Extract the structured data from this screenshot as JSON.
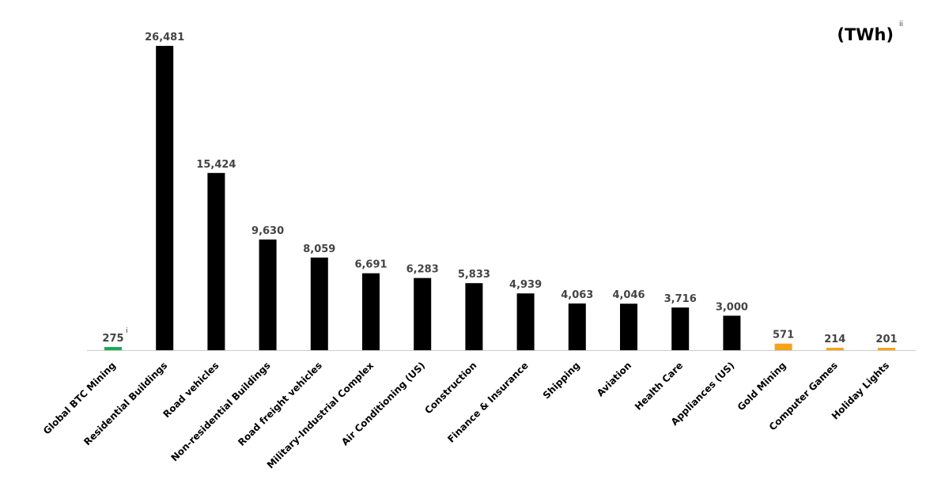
{
  "chart_data": {
    "type": "bar",
    "unit": "(TWh)",
    "unit_note": "ii",
    "categories": [
      "Global BTC Mining",
      "Residential Buildings",
      "Road vehicles",
      "Non-residential Buildings",
      "Road freight vehicles",
      "Military-Industrial Complex",
      "Air Conditioning (US)",
      "Construction",
      "Finance & Insurance",
      "Shipping",
      "Aviation",
      "Health Care",
      "Appliances (US)",
      "Gold Mining",
      "Computer Games",
      "Holiday Lights"
    ],
    "values": [
      275,
      26481,
      15424,
      9630,
      8059,
      6691,
      6283,
      5833,
      4939,
      4063,
      4046,
      3716,
      3000,
      571,
      214,
      201
    ],
    "value_labels": [
      "275",
      "26,481",
      "15,424",
      "9,630",
      "8,059",
      "6,691",
      "6,283",
      "5,833",
      "4,939",
      "4,063",
      "4,046",
      "3,716",
      "3,000",
      "571",
      "214",
      "201"
    ],
    "label_notes": [
      "i",
      "",
      "",
      "",
      "",
      "",
      "",
      "",
      "",
      "",
      "",
      "",
      "",
      "",
      "",
      ""
    ],
    "bar_colors": [
      "#1aaa55",
      "#000000",
      "#000000",
      "#000000",
      "#000000",
      "#000000",
      "#000000",
      "#000000",
      "#000000",
      "#000000",
      "#000000",
      "#000000",
      "#000000",
      "#f7a21b",
      "#f7a21b",
      "#f7a21b"
    ],
    "ylim": [
      0,
      26481
    ],
    "grid": false,
    "legend": "none",
    "axis_color": "#cccccc",
    "label_color": "#444444"
  }
}
